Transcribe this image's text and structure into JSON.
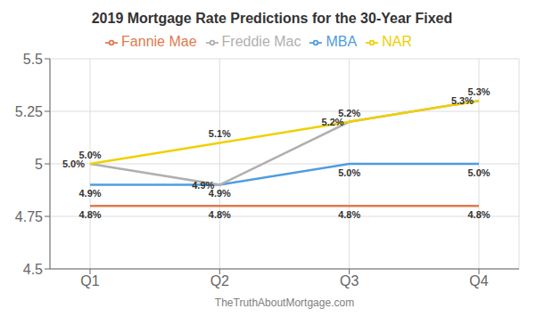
{
  "chart_data": {
    "type": "line",
    "title": "2019 Mortgage Rate Predictions for the 30-Year Fixed",
    "x_label": "TheTruthAboutMortgage.com",
    "categories": [
      "Q1",
      "Q2",
      "Q3",
      "Q4"
    ],
    "series": [
      {
        "name": "MBA",
        "color": "#4d9de0",
        "values": [
          4.9,
          4.9,
          5.0,
          5.0
        ],
        "value_labels": [
          "4.9%",
          "4.9%",
          "5.0%",
          "5.0%"
        ]
      },
      {
        "name": "Fannie Mae",
        "color": "#e07b4d",
        "values": [
          4.8,
          4.8,
          4.8,
          4.8
        ],
        "value_labels": [
          "4.8%",
          "4.8%",
          "4.8%",
          "4.8%"
        ]
      },
      {
        "name": "Freddie Mac",
        "color": "#b0b0b0",
        "values": [
          5.0,
          4.9,
          5.2,
          5.3
        ],
        "value_labels": [
          "5.0%",
          "4.9%",
          "5.2%",
          "5.3%"
        ]
      },
      {
        "name": "NAR",
        "color": "#f0d000",
        "values": [
          5.0,
          5.1,
          5.2,
          5.3
        ],
        "value_labels": [
          "5.0%",
          "5.1%",
          "5.2%",
          "5.3%"
        ]
      }
    ],
    "ylim": [
      4.5,
      5.5
    ],
    "yticks": [
      4.5,
      4.75,
      5,
      5.25,
      5.5
    ],
    "grid": true,
    "data_labels": true,
    "legend": "top"
  }
}
